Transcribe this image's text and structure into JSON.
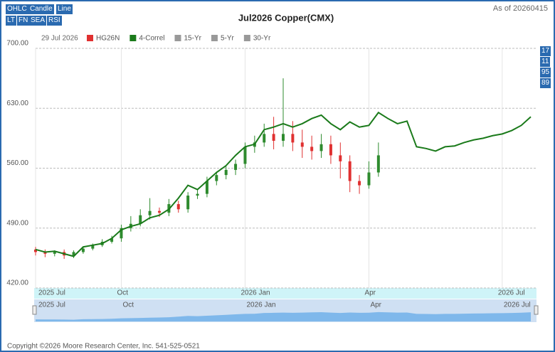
{
  "ui": {
    "buttons": [
      "OHLC",
      "Candle",
      "Line",
      "LT",
      "FN",
      "SEA",
      "RSI"
    ],
    "as_of": "As of 20260415",
    "legend_date": "29 Jul 2026",
    "badges": [
      "17",
      "11",
      "95",
      "89"
    ],
    "footer": "Copyright ©2026 Moore Research Center, Inc. 541-525-0521"
  },
  "chart_data": {
    "type": "candlestick",
    "title": "Jul2026 Copper(CMX)",
    "categories": [
      "2025 Jul",
      null,
      null,
      null,
      null,
      null,
      null,
      null,
      null,
      "Oct",
      null,
      null,
      null,
      null,
      null,
      null,
      null,
      null,
      null,
      null,
      null,
      null,
      "2026 Jan",
      null,
      null,
      null,
      null,
      null,
      null,
      null,
      null,
      null,
      null,
      null,
      null,
      "Apr",
      null,
      null,
      null,
      null,
      null,
      null,
      null,
      null,
      null,
      null,
      null,
      null,
      null,
      "2026 Jul",
      null,
      null,
      null
    ],
    "series": [
      {
        "name": "HG26N",
        "color": "#e03030",
        "up_color": "#2e8b2e",
        "down_color": "#e03030",
        "open": [
          465,
          462,
          460,
          462,
          458,
          462,
          466,
          470,
          474,
          478,
          490,
          495,
          505,
          510,
          508,
          518,
          512,
          528,
          530,
          545,
          552,
          558,
          565,
          585,
          590,
          600,
          592,
          600,
          590,
          585,
          580,
          588,
          575,
          568,
          545,
          540,
          555,
          null,
          null,
          null,
          null,
          null,
          null,
          null,
          null,
          null,
          null,
          null,
          null,
          null,
          null,
          null,
          null
        ],
        "high": [
          468,
          465,
          464,
          465,
          464,
          468,
          472,
          477,
          481,
          494,
          504,
          512,
          525,
          514,
          524,
          522,
          532,
          536,
          550,
          556,
          562,
          570,
          590,
          598,
          612,
          620,
          665,
          615,
          605,
          598,
          600,
          598,
          590,
          575,
          552,
          568,
          590,
          null,
          null,
          null,
          null,
          null,
          null,
          null,
          null,
          null,
          null,
          null,
          null,
          null,
          null,
          null,
          null
        ],
        "low": [
          458,
          456,
          457,
          454,
          455,
          460,
          464,
          468,
          472,
          474,
          486,
          492,
          500,
          503,
          504,
          508,
          508,
          524,
          526,
          540,
          547,
          552,
          560,
          578,
          585,
          582,
          585,
          580,
          572,
          570,
          572,
          565,
          548,
          532,
          530,
          536,
          550,
          null,
          null,
          null,
          null,
          null,
          null,
          null,
          null,
          null,
          null,
          null,
          null,
          null,
          null,
          null,
          null
        ],
        "close": [
          462,
          460,
          462,
          458,
          462,
          466,
          470,
          474,
          478,
          490,
          495,
          505,
          510,
          508,
          518,
          512,
          528,
          530,
          545,
          552,
          558,
          565,
          585,
          590,
          600,
          592,
          600,
          590,
          585,
          580,
          588,
          575,
          568,
          545,
          540,
          555,
          575,
          null,
          null,
          null,
          null,
          null,
          null,
          null,
          null,
          null,
          null,
          null,
          null,
          null,
          null,
          null,
          null
        ]
      },
      {
        "name": "4-Correl",
        "color": "#1a7a1a",
        "values": [
          465,
          462,
          463,
          460,
          457,
          468,
          470,
          472,
          478,
          488,
          492,
          495,
          502,
          505,
          512,
          525,
          540,
          535,
          545,
          555,
          563,
          575,
          585,
          588,
          605,
          608,
          612,
          608,
          612,
          618,
          622,
          612,
          605,
          614,
          608,
          610,
          625,
          618,
          612,
          615,
          585,
          583,
          580,
          585,
          586,
          590,
          593,
          595,
          598,
          600,
          604,
          610,
          620
        ]
      }
    ],
    "legend_extra": [
      {
        "name": "15-Yr",
        "color": "#999999"
      },
      {
        "name": "5-Yr",
        "color": "#999999"
      },
      {
        "name": "30-Yr",
        "color": "#999999"
      }
    ],
    "ylim": [
      420,
      700
    ],
    "yticks": [
      {
        "value": 420,
        "label": "420.00"
      },
      {
        "value": 490,
        "label": "490.00"
      },
      {
        "value": 560,
        "label": "560.00"
      },
      {
        "value": 630,
        "label": "630.00"
      },
      {
        "value": 700,
        "label": "700.00"
      }
    ],
    "grid": true
  }
}
